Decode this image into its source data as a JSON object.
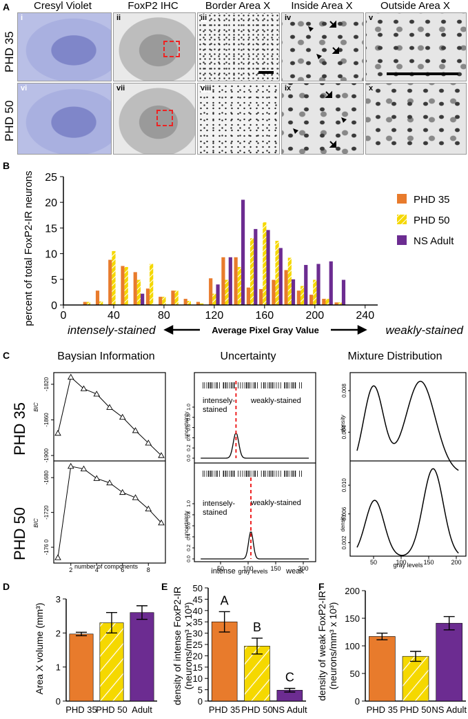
{
  "panel_a": {
    "letter": "A",
    "columns": [
      "Cresyl Violet",
      "FoxP2 IHC",
      "Border Area X",
      "Inside Area X",
      "Outside Area X"
    ],
    "rows": [
      "PHD 35",
      "PHD 50"
    ],
    "numerals": [
      "i",
      "ii",
      "iii",
      "iv",
      "v",
      "vi",
      "vii",
      "viii",
      "ix",
      "x"
    ]
  },
  "panel_b": {
    "letter": "B"
  },
  "panel_c": {
    "letter": "C",
    "titles": [
      "Baysian Information",
      "Uncertainty",
      "Mixture Distribution"
    ],
    "rows": [
      "PHD 35",
      "PHD 50"
    ],
    "bic_label": "BIC",
    "bic_xlabel": "number of components",
    "unc_label": "uncertainty",
    "unc_left_text": [
      "intensely-",
      "stained"
    ],
    "unc_right_text": "weakly-stained",
    "unc_xlabels": [
      "intense",
      "gray levels",
      "weak"
    ],
    "dens_label_top": "density",
    "dens_label_bottom": "density",
    "dens_xlabel": "gray levels"
  },
  "panel_d": {
    "letter": "D"
  },
  "panel_e": {
    "letter": "E"
  },
  "panel_f": {
    "letter": "F"
  },
  "chart_data": [
    {
      "id": "B",
      "type": "bar",
      "title": "",
      "ylabel": "percent of total FoxP2-IR neurons",
      "xlabel": "Average Pixel Gray Value",
      "x_left_note": "intensely-stained",
      "x_right_note": "weakly-stained",
      "xlim": [
        0,
        250
      ],
      "ylim": [
        0,
        25
      ],
      "xticks": [
        0,
        40,
        80,
        120,
        160,
        200,
        240
      ],
      "yticks": [
        0,
        5,
        10,
        15,
        20,
        25
      ],
      "legend": "top-right",
      "bin_centers": [
        20,
        30,
        40,
        50,
        60,
        70,
        80,
        90,
        100,
        110,
        120,
        130,
        140,
        150,
        160,
        170,
        180,
        190,
        200,
        210,
        220
      ],
      "series": [
        {
          "name": "PHD 35",
          "color": "#e87b2c",
          "pattern": "solid",
          "values": [
            0.6,
            2.8,
            8.8,
            7.6,
            6.4,
            3.2,
            1.6,
            2.8,
            1.2,
            0.6,
            5.2,
            9.3,
            9.3,
            3.4,
            3.1,
            4.9,
            6.8,
            2.8,
            2.0,
            1.2,
            0.5
          ]
        },
        {
          "name": "PHD 50",
          "color": "#f5d800",
          "pattern": "hatched",
          "values": [
            0.6,
            0.7,
            10.5,
            7.4,
            4.9,
            8.0,
            1.6,
            2.8,
            0.8,
            0.3,
            2.2,
            4.9,
            7.4,
            13.0,
            16.1,
            12.5,
            9.2,
            3.7,
            4.9,
            1.2,
            0.5
          ]
        },
        {
          "name": "NS Adult",
          "color": "#6c2c91",
          "pattern": "solid",
          "values": [
            0,
            0,
            0,
            0,
            2.2,
            0,
            0,
            0,
            0,
            0,
            4.0,
            9.3,
            20.5,
            14.8,
            14.6,
            11.1,
            5.0,
            7.8,
            8.0,
            8.5,
            4.9
          ]
        }
      ]
    },
    {
      "id": "C-BIC-35",
      "type": "line",
      "ylabel": "BIC",
      "x": [
        1,
        2,
        3,
        4,
        5,
        6,
        7,
        8,
        9
      ],
      "y": [
        -1875,
        -1812,
        -1825,
        -1831,
        -1846,
        -1857,
        -1872,
        -1886,
        -1900
      ],
      "yticks": [
        -1820,
        -1860,
        -1900
      ]
    },
    {
      "id": "C-BIC-50",
      "type": "line",
      "ylabel": "BIC",
      "x": [
        1,
        2,
        3,
        4,
        5,
        6,
        7,
        8,
        9
      ],
      "y": [
        -1772,
        -1667,
        -1670,
        -1681,
        -1686,
        -1697,
        -1703,
        -1716,
        -1732
      ],
      "xticks": [
        2,
        4,
        6,
        8
      ],
      "yticks": [
        -1680,
        -1720,
        -1760
      ],
      "ytick_labels": [
        "-1680",
        "-1720",
        "-176 0"
      ],
      "xlabel": "number of components"
    },
    {
      "id": "C-UNC-35",
      "type": "line",
      "ylabel": "uncertainty",
      "peak_x": 78,
      "peak_y": 0.5,
      "threshold": 78,
      "yticks": [
        0.0,
        0.2,
        0.4,
        0.6,
        0.8,
        1.0
      ],
      "xlim": [
        10,
        215
      ]
    },
    {
      "id": "C-UNC-50",
      "type": "line",
      "ylabel": "uncertainty",
      "peak_x": 105,
      "peak_y": 0.5,
      "threshold": 105,
      "yticks": [
        0.0,
        0.2,
        0.4,
        0.6,
        0.8,
        1.0
      ],
      "xticks": [
        50,
        100,
        150,
        200
      ],
      "xlim": [
        10,
        215
      ]
    },
    {
      "id": "C-MIX-35",
      "type": "line",
      "ylabel": "density",
      "yticks": [
        0.004,
        0.008
      ],
      "peaks": [
        [
          50,
          0.0084
        ],
        [
          135,
          0.0089
        ]
      ],
      "valley": [
        80,
        0.0022
      ]
    },
    {
      "id": "C-MIX-50",
      "type": "line",
      "ylabel": "density",
      "yticks": [
        0.002,
        0.006,
        0.01
      ],
      "xticks": [
        50,
        100,
        150,
        200
      ],
      "peaks": [
        [
          52,
          0.0079
        ],
        [
          158,
          0.0123
        ]
      ],
      "valley": [
        100,
        0.0012
      ],
      "xlabel": "gray levels"
    },
    {
      "id": "D",
      "type": "bar",
      "ylabel": "Area X volume (mm³)",
      "categories": [
        "PHD 35",
        "PHD 50",
        "Adult"
      ],
      "values": [
        1.97,
        2.3,
        2.6
      ],
      "errors": [
        0.05,
        0.3,
        0.2
      ],
      "colors": [
        "#e87b2c",
        "#f5d800",
        "#6c2c91"
      ],
      "hatched": [
        false,
        true,
        false
      ],
      "ylim": [
        0,
        3
      ],
      "yticks": [
        0,
        1,
        2,
        3
      ]
    },
    {
      "id": "E",
      "type": "bar",
      "ylabel": "density of intense FoxP2-IR",
      "ylabel2": "(neurons/mm³ x 10³)",
      "categories": [
        "PHD 35",
        "PHD 50",
        "NS Adult"
      ],
      "values": [
        35,
        24.3,
        4.8
      ],
      "errors": [
        4.5,
        3.5,
        0.8
      ],
      "letters": [
        "A",
        "B",
        "C"
      ],
      "colors": [
        "#e87b2c",
        "#f5d800",
        "#6c2c91"
      ],
      "hatched": [
        false,
        true,
        false
      ],
      "ylim": [
        0,
        50
      ],
      "yticks": [
        0,
        5,
        10,
        15,
        20,
        25,
        30,
        35,
        40,
        45,
        50
      ]
    },
    {
      "id": "F",
      "type": "bar",
      "ylabel": "density of weak FoxP2-IR",
      "ylabel2": "(neurons/mm³ x 10³)",
      "categories": [
        "PHD 35",
        "PHD 50",
        "NS Adult"
      ],
      "values": [
        117,
        81,
        141
      ],
      "errors": [
        6,
        9,
        12
      ],
      "colors": [
        "#e87b2c",
        "#f5d800",
        "#6c2c91"
      ],
      "hatched": [
        false,
        true,
        false
      ],
      "ylim": [
        0,
        200
      ],
      "yticks": [
        0,
        50,
        100,
        150,
        200
      ]
    }
  ]
}
